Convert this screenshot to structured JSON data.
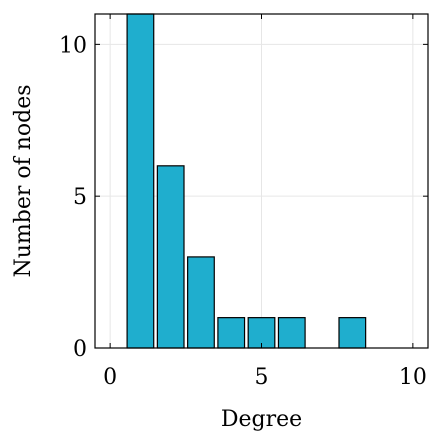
{
  "chart_data": {
    "type": "bar",
    "title": "",
    "xlabel": "Degree",
    "ylabel": "Number of nodes",
    "x": [
      1,
      2,
      3,
      4,
      5,
      6,
      7,
      8
    ],
    "values": [
      11,
      6,
      3,
      1,
      1,
      1,
      0,
      1
    ],
    "xlim": [
      -0.5,
      10.5
    ],
    "ylim": [
      0,
      11
    ],
    "xticks": [
      0,
      5,
      10
    ],
    "xtick_labels": [
      "0",
      "5",
      "10"
    ],
    "yticks": [
      0,
      5,
      10
    ],
    "ytick_labels": [
      "0",
      "5",
      "10"
    ],
    "grid": true,
    "bar_color": "#1FAECE",
    "bar_edge_color": "#000000"
  }
}
